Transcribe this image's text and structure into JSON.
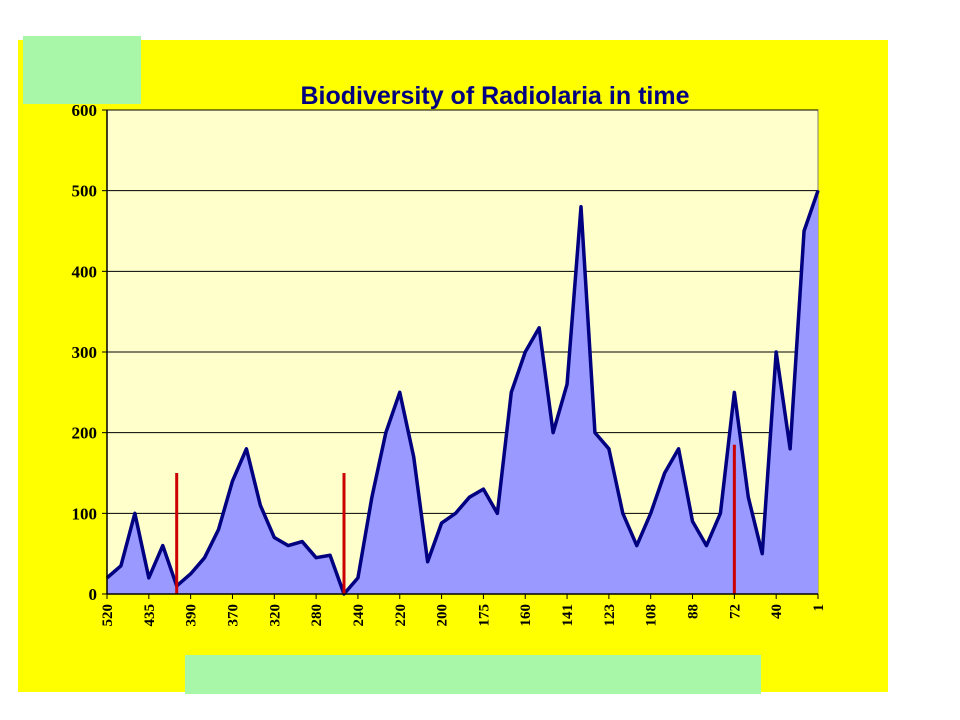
{
  "chart_data": {
    "type": "area",
    "title": "Biodiversity of Radiolaria in time",
    "xlabel": "",
    "ylabel": "",
    "ylim": [
      0,
      600
    ],
    "yticks": [
      0,
      100,
      200,
      300,
      400,
      500,
      600
    ],
    "x_tick_labels": [
      "520",
      "435",
      "390",
      "370",
      "320",
      "280",
      "240",
      "220",
      "200",
      "175",
      "160",
      "141",
      "123",
      "108",
      "88",
      "72",
      "40",
      "1"
    ],
    "grid": "horizontal",
    "series": [
      {
        "values": [
          20,
          35,
          100,
          20,
          60,
          10,
          25,
          45,
          80,
          140,
          180,
          110,
          70,
          60,
          65,
          45,
          48,
          0,
          20,
          120,
          200,
          250,
          170,
          40,
          88,
          100,
          120,
          130,
          100,
          250,
          300,
          330,
          200,
          260,
          480,
          200,
          180,
          100,
          60,
          100,
          150,
          180,
          90,
          60,
          100,
          250,
          120,
          50,
          300,
          180,
          450,
          500
        ],
        "color": "#9999ff",
        "line_color": "#000080"
      }
    ],
    "markers": [
      {
        "x_index": 5,
        "height": 150,
        "color": "#cc0000"
      },
      {
        "x_index": 17,
        "height": 150,
        "color": "#cc0000"
      },
      {
        "x_index": 45,
        "height": 185,
        "color": "#cc0000"
      }
    ],
    "colors": {
      "background": "#ffff00",
      "plot_area": "#ffffcc",
      "grid": "#000000",
      "mask": "#a8f7a8"
    }
  }
}
